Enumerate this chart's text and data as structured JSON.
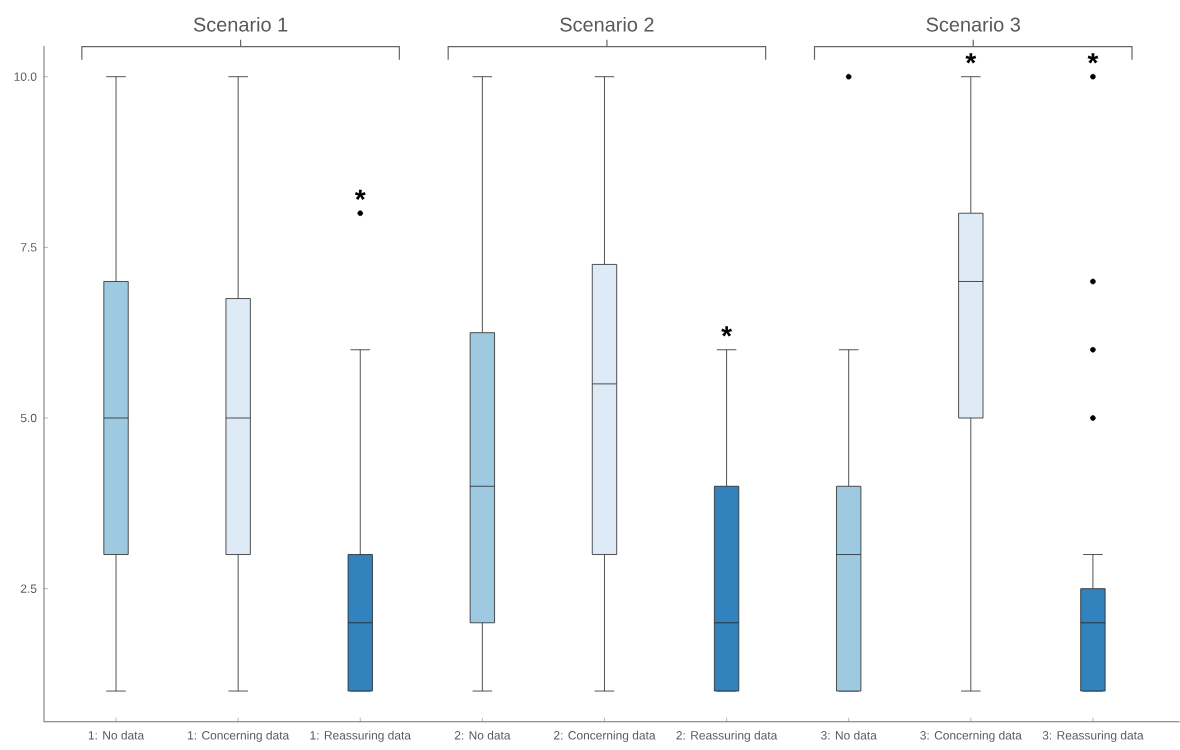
{
  "chart_data": {
    "type": "box",
    "categories": [
      "1: No data",
      "1: Concerning data",
      "1: Reassuring data",
      "2: No data",
      "2: Concerning data",
      "2: Reassuring data",
      "3: No data",
      "3: Concerning data",
      "3: Reassuring data"
    ],
    "boxes": [
      {
        "low": 1,
        "q1": 3,
        "median": 5,
        "q3": 7,
        "high": 10
      },
      {
        "low": 1,
        "q1": 3,
        "median": 5,
        "q3": 6.75,
        "high": 10
      },
      {
        "low": 1,
        "q1": 1,
        "median": 2,
        "q3": 3,
        "high": 6
      },
      {
        "low": 1,
        "q1": 2,
        "median": 4,
        "q3": 6.25,
        "high": 10
      },
      {
        "low": 1,
        "q1": 3,
        "median": 5.5,
        "q3": 7.25,
        "high": 10
      },
      {
        "low": 1,
        "q1": 1,
        "median": 2,
        "q3": 4,
        "high": 6
      },
      {
        "low": 1,
        "q1": 1,
        "median": 3,
        "q3": 4,
        "high": 6
      },
      {
        "low": 1,
        "q1": 5,
        "median": 7,
        "q3": 8,
        "high": 10
      },
      {
        "low": 1,
        "q1": 1,
        "median": 2,
        "q3": 2.5,
        "high": 3
      }
    ],
    "series": [
      {
        "type": "scatter",
        "color": "#000000",
        "marker": "circle",
        "x": [
          "1: Reassuring data",
          "3: No data",
          "3: Reassuring data",
          "3: Reassuring data",
          "3: Reassuring data",
          "3: Reassuring data"
        ],
        "values": [
          8,
          10,
          5,
          6,
          7,
          10
        ]
      }
    ],
    "colors": [
      "#9ecae1",
      "#deebf7",
      "#3182bd",
      "#9ecae1",
      "#deebf7",
      "#3182bd",
      "#9ecae1",
      "#deebf7",
      "#3182bd"
    ],
    "ylim": [
      0.55,
      10.45
    ],
    "yticks": [
      {
        "value": 2.5,
        "label": "2.5"
      },
      {
        "value": 5,
        "label": "5.0"
      },
      {
        "value": 7.5,
        "label": "7.5"
      },
      {
        "value": 10,
        "label": "10.0"
      }
    ],
    "grid": false,
    "annotations": [
      "Scenario 1",
      "Scenario 2",
      "Scenario 3",
      {
        "text": "*",
        "x": "1: Reassuring data",
        "y": 8
      },
      {
        "text": "*",
        "x": "2: Reassuring data",
        "y": 6
      },
      {
        "text": "*",
        "x": "3: Concerning data",
        "y": 10
      },
      {
        "text": "*",
        "x": "3: Reassuring data",
        "y": 10
      }
    ]
  }
}
